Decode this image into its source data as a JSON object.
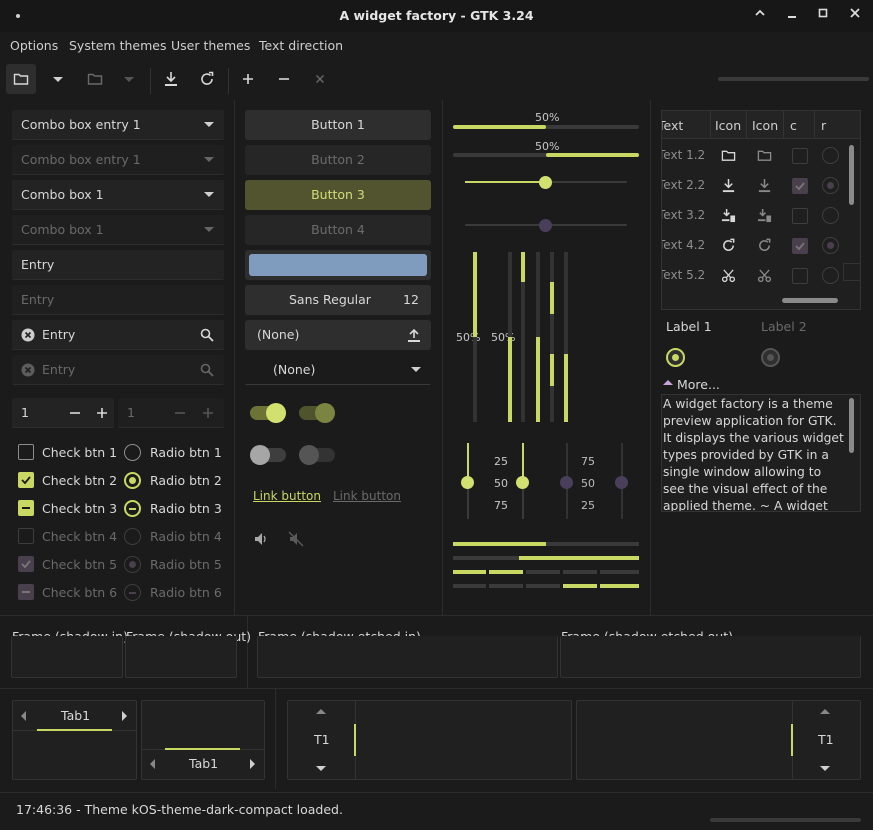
{
  "window": {
    "title": "A widget factory - GTK 3.24"
  },
  "menubar": [
    "Options",
    "System themes",
    "User themes",
    "Text direction"
  ],
  "colors": {
    "accent": "#c8d863",
    "bg": "#1b1b1b",
    "entry": "#232323",
    "suggested": "#51542f",
    "color_button": "#7f9bbe"
  },
  "col1": {
    "combo_entry_1": "Combo box entry 1",
    "combo_entry_1_dis": "Combo box entry 1",
    "combo_1": "Combo box 1",
    "combo_1_dis": "Combo box 1",
    "entry": "Entry",
    "entry_dis": "Entry",
    "search_entry": "Entry",
    "search_entry_dis": "Entry",
    "spin_value": "1",
    "spin_value_dis": "1",
    "checks": [
      "Check btn 1",
      "Check btn 2",
      "Check btn 3",
      "Check btn 4",
      "Check btn 5",
      "Check btn 6"
    ],
    "radios": [
      "Radio btn 1",
      "Radio btn 2",
      "Radio btn 3",
      "Radio btn 4",
      "Radio btn 5",
      "Radio btn 6"
    ]
  },
  "col2": {
    "buttons": [
      "Button 1",
      "Button 2",
      "Button 3",
      "Button 4"
    ],
    "font_name": "Sans Regular",
    "font_size": "12",
    "file_none": "(None)",
    "combo_none": "(None)",
    "link_1": "Link button",
    "link_2": "Link button"
  },
  "col3": {
    "progress_label_1": "50%",
    "progress_label_2": "50%",
    "vprogress_label_1": "50%",
    "vprogress_label_2": "50%",
    "progress_1": 0.5,
    "progress_2": 0.5,
    "scale_1": 0.5,
    "scale_2": 0.5,
    "marks_left": [
      "25",
      "50",
      "75"
    ],
    "marks_right": [
      "75",
      "50",
      "25"
    ]
  },
  "treeview": {
    "headers": [
      "Text",
      "Icon",
      "Icon",
      "c",
      "r"
    ],
    "rows": [
      {
        "text": "Text 1.2",
        "icon": "folder-icon",
        "check": false,
        "radio": false
      },
      {
        "text": "Text 2.2",
        "icon": "download-icon",
        "check": true,
        "radio": true
      },
      {
        "text": "Text 3.2",
        "icon": "download-special-icon",
        "check": false,
        "radio": false
      },
      {
        "text": "Text 4.2",
        "icon": "refresh-icon",
        "check": true,
        "radio": true
      },
      {
        "text": "Text 5.2",
        "icon": "scissors-icon",
        "check": false,
        "radio": false
      }
    ]
  },
  "labels": {
    "label1": "Label 1",
    "label2": "Label 2",
    "expander": "More..."
  },
  "textview": {
    "text": "A widget factory is a theme preview application for GTK. It displays the various widget types provided by GTK in a single window allowing to see the visual effect of the applied theme. ~ A widget factory is a"
  },
  "frames": [
    "Frame (shadow in)",
    "Frame (shadow out)",
    "Frame (shadow etched in)",
    "Frame (shadow etched out)"
  ],
  "tabs": {
    "tab_top": "Tab1",
    "tab_bottom": "Tab1",
    "tab_left": "T1",
    "tab_right": "T1"
  },
  "status": {
    "text": "17:46:36 - Theme kOS-theme-dark-compact loaded."
  }
}
